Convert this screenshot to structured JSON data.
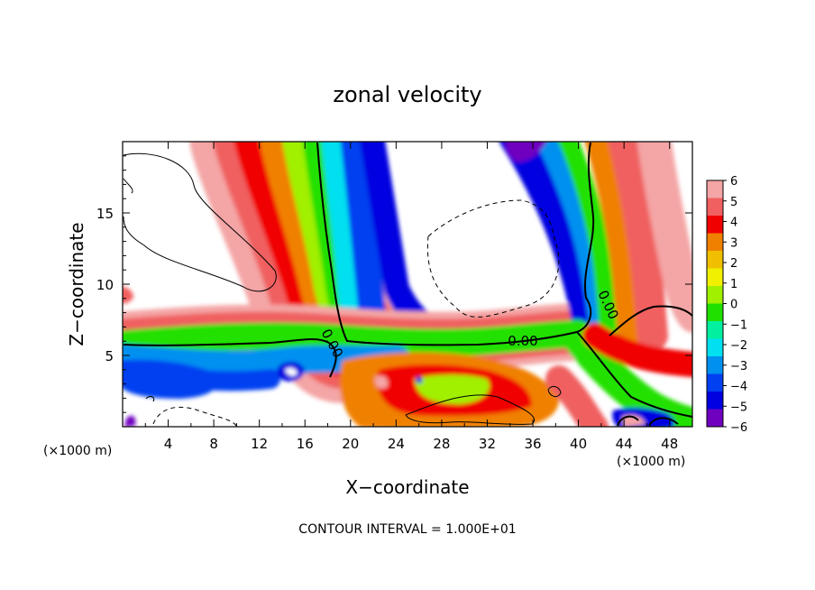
{
  "chart_data": {
    "type": "heatmap",
    "title": "zonal velocity",
    "xlabel": "X−coordinate",
    "ylabel": "Z−coordinate",
    "x_unit": "(×1000 m)",
    "y_unit": "(×1000 m)",
    "xlim": [
      0,
      50
    ],
    "ylim": [
      0,
      20
    ],
    "x_ticks": [
      4,
      8,
      12,
      16,
      20,
      24,
      28,
      32,
      36,
      40,
      44,
      48
    ],
    "x_tick_labels": [
      "4",
      "8",
      "12",
      "16",
      "20",
      "24",
      "28",
      "32",
      "36",
      "40",
      "44",
      "48"
    ],
    "y_ticks": [
      5,
      10,
      15
    ],
    "y_tick_labels": [
      "5",
      "10",
      "15"
    ],
    "colorbar": {
      "min": -6,
      "max": 6,
      "ticks": [
        6,
        5,
        4,
        3,
        2,
        1,
        0,
        -1,
        -2,
        -3,
        -4,
        -5,
        -6
      ],
      "tick_labels": [
        "6",
        "5",
        "4",
        "3",
        "2",
        "1",
        "0",
        "−1",
        "−2",
        "−3",
        "−4",
        "−5",
        "−6"
      ],
      "colors": [
        "#f4a5a5",
        "#f06060",
        "#f00000",
        "#f08000",
        "#f0c000",
        "#f0f000",
        "#a0f000",
        "#20e000",
        "#00f0a0",
        "#00e0f0",
        "#0090f0",
        "#0040f0",
        "#0000e0",
        "#7000c0"
      ]
    },
    "contour_labels": [
      "0.00",
      "0.00",
      "0.00"
    ],
    "annotation": "CONTOUR INTERVAL = 1.000E+01",
    "grid": false
  }
}
